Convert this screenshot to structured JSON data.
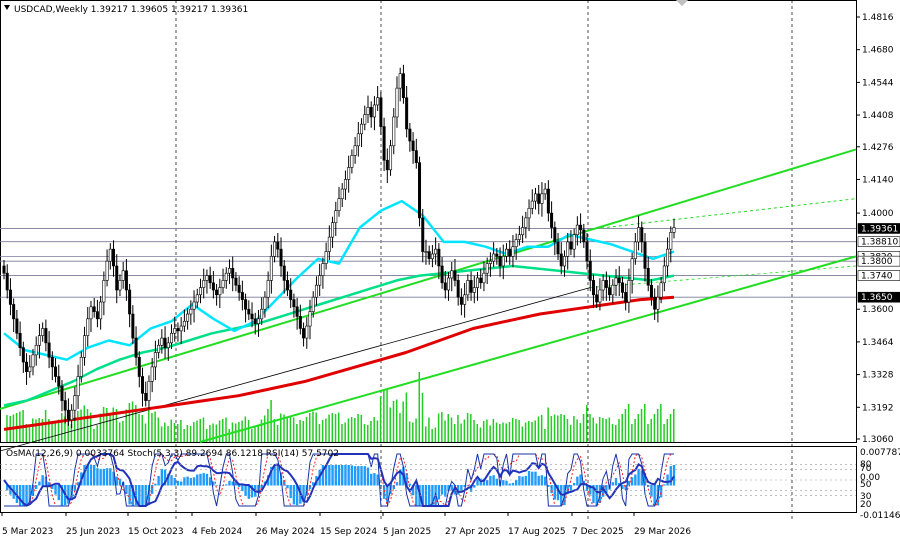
{
  "header": {
    "symbol_line": "USDCAD,Weekly  1.39217 1.39605 1.39217 1.39361"
  },
  "indicator_header": "OsMA(12,26,9) 0.0033764  Stoch(5,3,3) 89.2694 86.1218  RSI(14) 57.5702",
  "colors": {
    "background": "#ffffff",
    "candles": "#000000",
    "ema_short": "#00e5ff",
    "ema_mid": "#00e08a",
    "ema_long": "#e00000",
    "channel": "#22dd22",
    "trendline": "#000000",
    "volume": "#22cc22",
    "osma": "#1e9bff",
    "stoch_main": "#1533a8",
    "stoch_signal": "#ff2020",
    "rsi": "#2233bb"
  },
  "chart_data": {
    "type": "candlestick",
    "timeframe": "Weekly",
    "symbol": "USDCAD",
    "ylim": [
      1.306,
      1.486
    ],
    "y_ticks": [
      "1.4816",
      "1.4680",
      "1.4544",
      "1.4408",
      "1.4276",
      "1.4140",
      "1.4000",
      "1.3600",
      "1.3464",
      "1.3328",
      "1.3192",
      "1.3060"
    ],
    "x_labels": [
      "5 Mar 2023",
      "25 Jun 2023",
      "15 Oct 2023",
      "4 Feb 2024",
      "26 May 2024",
      "15 Sep 2024",
      "5 Jan 2025",
      "27 Apr 2025",
      "17 Aug 2025",
      "7 Dec 2025",
      "29 Mar 2026"
    ],
    "highlighted_levels": [
      {
        "label": "1.39361",
        "value": 1.39361
      },
      {
        "label": "1.38810",
        "value": 1.3881
      },
      {
        "label": "1.3820",
        "value": 1.382
      },
      {
        "label": "1.3800",
        "value": 1.38
      },
      {
        "label": "1.3740",
        "value": 1.374
      },
      {
        "label": "1.3650",
        "value": 1.365
      }
    ],
    "indicator_scale": [
      "0.0077877",
      "80",
      "70",
      "0.00",
      "50",
      "30",
      "20",
      "-0.011465"
    ],
    "series": [
      {
        "name": "close",
        "values": [
          1.375,
          1.368,
          1.362,
          1.356,
          1.35,
          1.344,
          1.338,
          1.334,
          1.336,
          1.341,
          1.345,
          1.349,
          1.352,
          1.346,
          1.34,
          1.336,
          1.332,
          1.328,
          1.322,
          1.318,
          1.314,
          1.318,
          1.324,
          1.332,
          1.34,
          1.349,
          1.356,
          1.361,
          1.359,
          1.356,
          1.363,
          1.372,
          1.38,
          1.385,
          1.378,
          1.368,
          1.372,
          1.376,
          1.368,
          1.358,
          1.348,
          1.34,
          1.332,
          1.325,
          1.322,
          1.33,
          1.336,
          1.342,
          1.345,
          1.348,
          1.344,
          1.346,
          1.35,
          1.352,
          1.351,
          1.353,
          1.355,
          1.358,
          1.36,
          1.363,
          1.366,
          1.369,
          1.372,
          1.374,
          1.371,
          1.368,
          1.366,
          1.369,
          1.372,
          1.375,
          1.377,
          1.373,
          1.37,
          1.367,
          1.364,
          1.36,
          1.358,
          1.356,
          1.354,
          1.356,
          1.36,
          1.365,
          1.372,
          1.382,
          1.388,
          1.385,
          1.378,
          1.372,
          1.368,
          1.364,
          1.361,
          1.357,
          1.352,
          1.348,
          1.353,
          1.359,
          1.365,
          1.37,
          1.374,
          1.379,
          1.384,
          1.39,
          1.396,
          1.401,
          1.406,
          1.41,
          1.414,
          1.419,
          1.424,
          1.428,
          1.433,
          1.437,
          1.441,
          1.444,
          1.44,
          1.445,
          1.448,
          1.436,
          1.422,
          1.418,
          1.428,
          1.44,
          1.452,
          1.458,
          1.448,
          1.435,
          1.43,
          1.426,
          1.421,
          1.398,
          1.384,
          1.384,
          1.381,
          1.383,
          1.385,
          1.378,
          1.371,
          1.368,
          1.373,
          1.376,
          1.372,
          1.365,
          1.362,
          1.366,
          1.372,
          1.367,
          1.369,
          1.373,
          1.371,
          1.375,
          1.379,
          1.38,
          1.383,
          1.382,
          1.378,
          1.382,
          1.385,
          1.382,
          1.386,
          1.389,
          1.391,
          1.394,
          1.398,
          1.402,
          1.405,
          1.408,
          1.404,
          1.408,
          1.41,
          1.4,
          1.394,
          1.388,
          1.383,
          1.378,
          1.382,
          1.388,
          1.385,
          1.391,
          1.395,
          1.393,
          1.388,
          1.38,
          1.372,
          1.366,
          1.363,
          1.368,
          1.372,
          1.369,
          1.366,
          1.37,
          1.373,
          1.371,
          1.367,
          1.363,
          1.372,
          1.381,
          1.388,
          1.394,
          1.388,
          1.377,
          1.37,
          1.365,
          1.36,
          1.365,
          1.371,
          1.378,
          1.385,
          1.392,
          1.394
        ]
      },
      {
        "name": "ema_short",
        "values": [
          1.35,
          1.343,
          1.341,
          1.339,
          1.344,
          1.347,
          1.345,
          1.352,
          1.355,
          1.362,
          1.356,
          1.351,
          1.355,
          1.364,
          1.373,
          1.381,
          1.379,
          1.394,
          1.401,
          1.405,
          1.399,
          1.388,
          1.388,
          1.386,
          1.383,
          1.386,
          1.386,
          1.391,
          1.389,
          1.387,
          1.384,
          1.381,
          1.384
        ]
      },
      {
        "name": "ema_mid",
        "values": [
          1.32,
          1.322,
          1.326,
          1.33,
          1.335,
          1.339,
          1.342,
          1.344,
          1.347,
          1.35,
          1.352,
          1.354,
          1.357,
          1.36,
          1.363,
          1.366,
          1.369,
          1.372,
          1.374,
          1.375,
          1.376,
          1.377,
          1.378,
          1.377,
          1.376,
          1.375,
          1.374,
          1.373,
          1.372,
          1.374
        ]
      },
      {
        "name": "ema_long",
        "values": [
          1.31,
          1.312,
          1.314,
          1.316,
          1.318,
          1.32,
          1.322,
          1.324,
          1.327,
          1.33,
          1.334,
          1.338,
          1.342,
          1.347,
          1.352,
          1.355,
          1.358,
          1.36,
          1.362,
          1.364,
          1.365
        ]
      }
    ]
  }
}
